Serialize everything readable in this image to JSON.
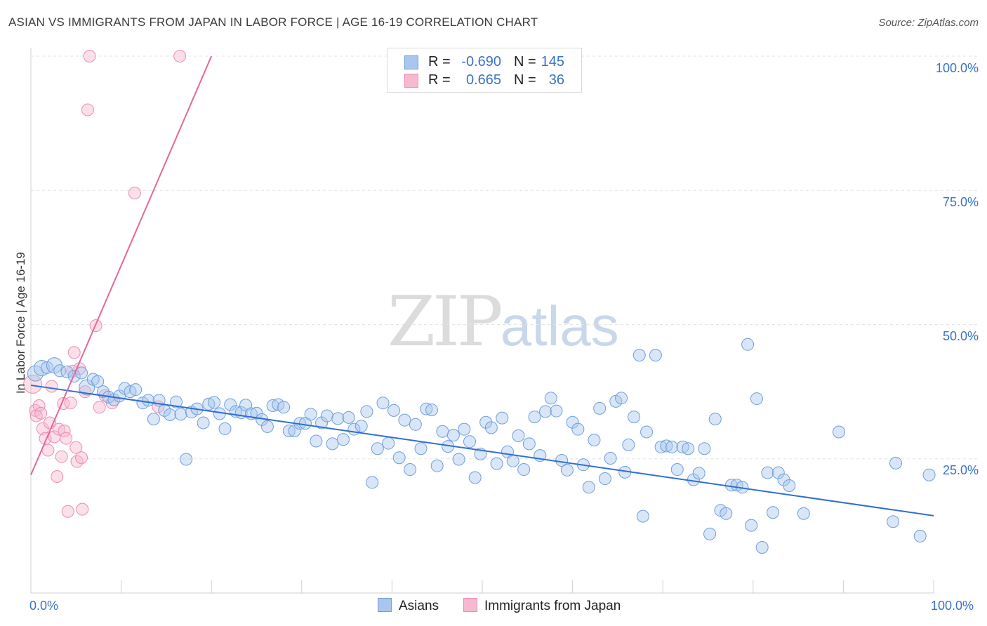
{
  "header": {
    "title": "ASIAN VS IMMIGRANTS FROM JAPAN IN LABOR FORCE | AGE 16-19 CORRELATION CHART",
    "source": "Source: ZipAtlas.com"
  },
  "watermark": {
    "zip": "ZIP",
    "atlas": "atlas"
  },
  "legend": {
    "rows": [
      {
        "r_label": "R =",
        "r_value": "-0.690",
        "n_label": "N =",
        "n_value": "145"
      },
      {
        "r_label": "R =",
        "r_value": "0.665",
        "n_label": "N =",
        "n_value": "36"
      }
    ]
  },
  "axes": {
    "ylabel": "In Labor Force | Age 16-19",
    "y_ticks": [
      "100.0%",
      "75.0%",
      "50.0%",
      "25.0%"
    ],
    "x_min_label": "0.0%",
    "x_max_label": "100.0%"
  },
  "bottom_legend": {
    "asians": "Asians",
    "japan": "Immigrants from Japan"
  },
  "colors": {
    "asian_fill": "#a9c7ee",
    "asian_stroke": "#6f9fdb",
    "asian_line": "#2f6fd0",
    "japan_fill": "#f6b9cf",
    "japan_stroke": "#ee8db1",
    "japan_line": "#e4679a",
    "tick_text": "#3a72c9"
  },
  "chart_data": {
    "type": "scatter",
    "title": "ASIAN VS IMMIGRANTS FROM JAPAN IN LABOR FORCE | AGE 16-19 CORRELATION CHART",
    "xlabel": "",
    "ylabel": "In Labor Force | Age 16-19",
    "xlim": [
      0,
      100
    ],
    "ylim": [
      0,
      102
    ],
    "grid": true,
    "legend_position": "top-center",
    "series": [
      {
        "name": "Asians",
        "trend": {
          "x": [
            0,
            100
          ],
          "y": [
            38.7,
            14.4
          ]
        },
        "points": [
          [
            0.5,
            40.9
          ],
          [
            1.2,
            41.9
          ],
          [
            1.8,
            42.0
          ],
          [
            2.6,
            42.4
          ],
          [
            3.2,
            41.4
          ],
          [
            4.0,
            41.2
          ],
          [
            4.8,
            40.4
          ],
          [
            5.6,
            41.0
          ],
          [
            6.2,
            38.3
          ],
          [
            6.9,
            39.8
          ],
          [
            7.4,
            39.4
          ],
          [
            8.0,
            37.5
          ],
          [
            8.6,
            36.5
          ],
          [
            9.2,
            36.0
          ],
          [
            9.8,
            36.7
          ],
          [
            10.4,
            38.1
          ],
          [
            11.0,
            37.5
          ],
          [
            11.6,
            37.9
          ],
          [
            12.4,
            35.4
          ],
          [
            13.0,
            35.9
          ],
          [
            13.6,
            32.4
          ],
          [
            14.2,
            35.9
          ],
          [
            14.8,
            34.0
          ],
          [
            15.4,
            33.2
          ],
          [
            16.1,
            35.6
          ],
          [
            16.6,
            33.3
          ],
          [
            17.2,
            24.9
          ],
          [
            17.8,
            33.7
          ],
          [
            18.4,
            34.3
          ],
          [
            19.1,
            31.7
          ],
          [
            19.7,
            35.2
          ],
          [
            20.3,
            35.5
          ],
          [
            20.9,
            33.4
          ],
          [
            21.5,
            30.6
          ],
          [
            22.1,
            35.1
          ],
          [
            22.7,
            33.8
          ],
          [
            23.3,
            33.6
          ],
          [
            23.8,
            35.0
          ],
          [
            24.4,
            33.4
          ],
          [
            25.0,
            33.5
          ],
          [
            25.6,
            32.3
          ],
          [
            26.2,
            31.0
          ],
          [
            26.8,
            34.9
          ],
          [
            27.4,
            35.1
          ],
          [
            28.0,
            34.6
          ],
          [
            28.6,
            30.2
          ],
          [
            29.2,
            30.2
          ],
          [
            29.8,
            31.6
          ],
          [
            30.4,
            31.6
          ],
          [
            31.0,
            33.3
          ],
          [
            31.6,
            28.3
          ],
          [
            32.2,
            31.7
          ],
          [
            32.8,
            33.0
          ],
          [
            33.4,
            27.8
          ],
          [
            34.0,
            32.5
          ],
          [
            34.6,
            28.6
          ],
          [
            35.2,
            32.7
          ],
          [
            35.8,
            30.5
          ],
          [
            36.6,
            31.1
          ],
          [
            37.2,
            33.8
          ],
          [
            37.8,
            20.6
          ],
          [
            38.4,
            26.9
          ],
          [
            39.0,
            35.4
          ],
          [
            39.6,
            27.9
          ],
          [
            40.2,
            34.0
          ],
          [
            40.8,
            25.2
          ],
          [
            41.4,
            32.2
          ],
          [
            42.0,
            23.0
          ],
          [
            42.6,
            31.4
          ],
          [
            43.2,
            26.9
          ],
          [
            43.8,
            34.3
          ],
          [
            44.4,
            34.1
          ],
          [
            45.0,
            23.7
          ],
          [
            45.6,
            30.1
          ],
          [
            46.2,
            27.3
          ],
          [
            46.8,
            29.4
          ],
          [
            47.4,
            24.9
          ],
          [
            48.0,
            30.5
          ],
          [
            48.6,
            28.2
          ],
          [
            49.2,
            21.5
          ],
          [
            49.8,
            25.9
          ],
          [
            50.4,
            31.8
          ],
          [
            51.0,
            30.8
          ],
          [
            51.6,
            24.1
          ],
          [
            52.2,
            32.6
          ],
          [
            52.8,
            26.3
          ],
          [
            53.4,
            24.6
          ],
          [
            54.0,
            29.3
          ],
          [
            54.6,
            23.0
          ],
          [
            55.2,
            27.8
          ],
          [
            55.8,
            32.8
          ],
          [
            56.4,
            25.6
          ],
          [
            57.0,
            33.8
          ],
          [
            57.6,
            36.3
          ],
          [
            58.2,
            33.9
          ],
          [
            58.8,
            24.7
          ],
          [
            59.4,
            22.9
          ],
          [
            60.0,
            31.8
          ],
          [
            60.6,
            30.5
          ],
          [
            61.2,
            23.9
          ],
          [
            61.8,
            19.7
          ],
          [
            62.4,
            28.5
          ],
          [
            63.0,
            34.4
          ],
          [
            63.6,
            21.3
          ],
          [
            64.2,
            25.1
          ],
          [
            64.8,
            35.7
          ],
          [
            65.4,
            36.3
          ],
          [
            65.8,
            22.5
          ],
          [
            66.2,
            27.6
          ],
          [
            66.8,
            32.8
          ],
          [
            67.4,
            44.3
          ],
          [
            67.8,
            14.3
          ],
          [
            68.2,
            30.0
          ],
          [
            69.2,
            44.3
          ],
          [
            69.8,
            27.2
          ],
          [
            70.4,
            27.4
          ],
          [
            71.0,
            27.2
          ],
          [
            71.6,
            23.0
          ],
          [
            72.2,
            27.2
          ],
          [
            72.8,
            26.9
          ],
          [
            73.4,
            21.1
          ],
          [
            74.0,
            22.3
          ],
          [
            74.6,
            26.9
          ],
          [
            75.2,
            11.0
          ],
          [
            75.8,
            32.4
          ],
          [
            76.4,
            15.4
          ],
          [
            77.0,
            14.8
          ],
          [
            77.6,
            20.1
          ],
          [
            78.2,
            20.1
          ],
          [
            78.8,
            19.7
          ],
          [
            79.4,
            46.3
          ],
          [
            79.8,
            12.6
          ],
          [
            80.4,
            36.2
          ],
          [
            81.0,
            8.5
          ],
          [
            81.6,
            22.4
          ],
          [
            82.2,
            15.0
          ],
          [
            82.8,
            22.4
          ],
          [
            83.4,
            21.1
          ],
          [
            84.0,
            20.0
          ],
          [
            85.6,
            14.8
          ],
          [
            89.5,
            30.0
          ],
          [
            95.5,
            13.3
          ],
          [
            95.8,
            24.2
          ],
          [
            98.5,
            10.6
          ],
          [
            99.5,
            22.0
          ]
        ]
      },
      {
        "name": "Immigrants from Japan",
        "trend": {
          "x": [
            0,
            20
          ],
          "y": [
            22.0,
            100
          ]
        },
        "points": [
          [
            0.2,
            38.9
          ],
          [
            0.5,
            34.0
          ],
          [
            0.6,
            33.0
          ],
          [
            0.9,
            34.9
          ],
          [
            1.1,
            33.5
          ],
          [
            1.3,
            30.6
          ],
          [
            1.6,
            28.8
          ],
          [
            1.9,
            26.6
          ],
          [
            2.1,
            31.7
          ],
          [
            2.3,
            38.5
          ],
          [
            2.6,
            29.1
          ],
          [
            2.9,
            21.7
          ],
          [
            3.1,
            30.5
          ],
          [
            3.4,
            25.4
          ],
          [
            3.6,
            35.3
          ],
          [
            3.7,
            30.2
          ],
          [
            3.9,
            28.8
          ],
          [
            4.1,
            15.2
          ],
          [
            4.4,
            35.4
          ],
          [
            4.6,
            41.3
          ],
          [
            4.8,
            44.8
          ],
          [
            5.0,
            27.1
          ],
          [
            5.1,
            24.5
          ],
          [
            5.4,
            41.8
          ],
          [
            5.6,
            25.2
          ],
          [
            5.7,
            15.6
          ],
          [
            6.0,
            37.5
          ],
          [
            6.3,
            90.0
          ],
          [
            6.5,
            100.0
          ],
          [
            7.2,
            49.8
          ],
          [
            7.6,
            34.6
          ],
          [
            8.2,
            36.8
          ],
          [
            9.0,
            35.4
          ],
          [
            11.5,
            74.5
          ],
          [
            14.1,
            34.7
          ],
          [
            16.5,
            100.0
          ]
        ]
      }
    ]
  }
}
